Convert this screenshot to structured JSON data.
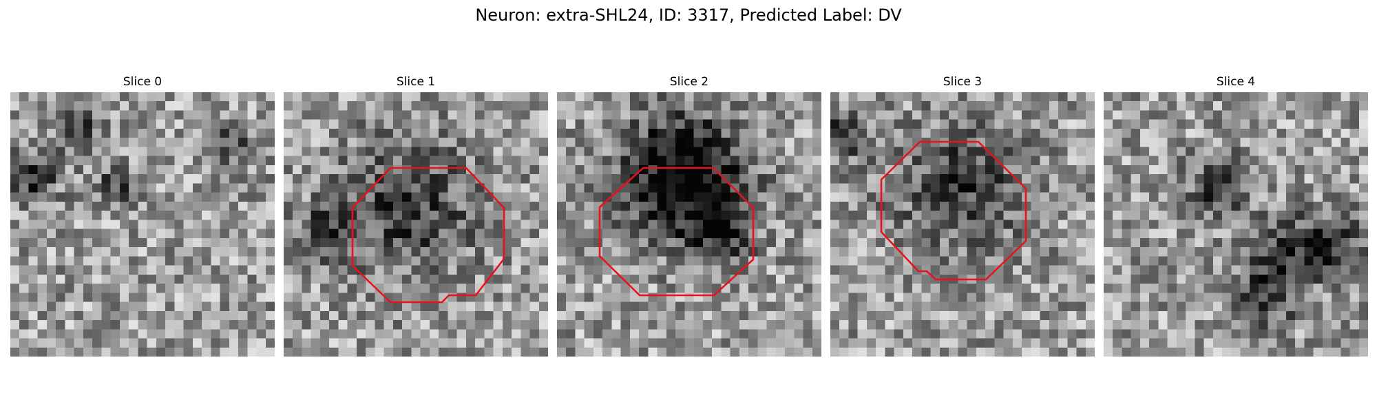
{
  "figure": {
    "title": "Neuron: extra-SHL24, ID: 3317, Predicted Label: DV"
  },
  "colors": {
    "outline": "#e8121a",
    "background": "#ffffff"
  },
  "slices": [
    {
      "title": "Slice 0",
      "has_roi": false
    },
    {
      "title": "Slice 1",
      "has_roi": true
    },
    {
      "title": "Slice 2",
      "has_roi": true
    },
    {
      "title": "Slice 3",
      "has_roi": true
    },
    {
      "title": "Slice 4",
      "has_roi": false
    }
  ]
}
